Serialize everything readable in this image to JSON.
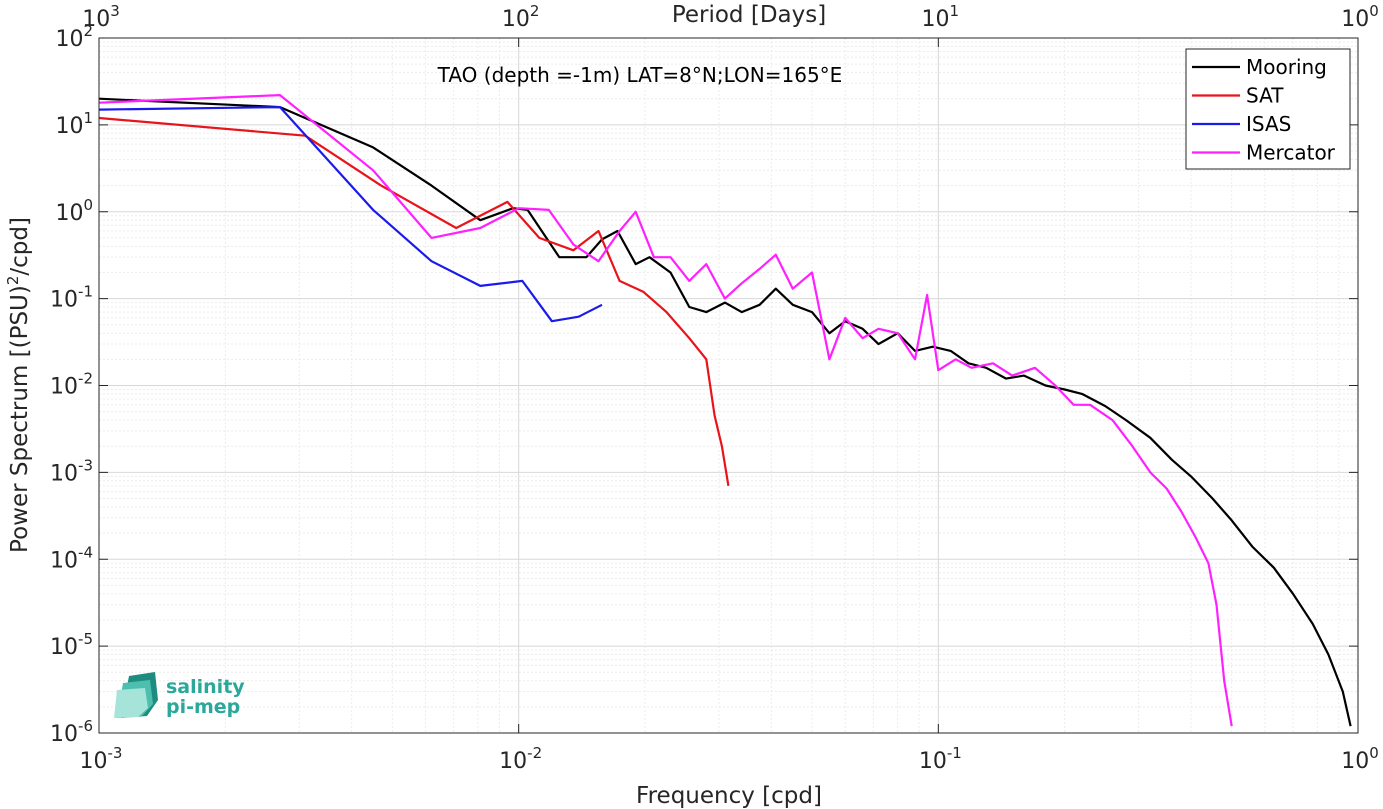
{
  "chart_data": {
    "type": "line",
    "title": "TAO (depth =-1m) LAT=8°N;LON=165°E",
    "xlabel": "Frequency [cpd]",
    "ylabel_main": "Power Spectrum [(PSU)",
    "ylabel_sup": "2",
    "ylabel_tail": "/cpd]",
    "top_xlabel": "Period [Days]",
    "x_scale": "log",
    "y_scale": "log",
    "xlim": [
      0.001,
      1
    ],
    "ylim": [
      1e-06,
      100
    ],
    "grid": true,
    "minor_grid": true,
    "legend_position": "top-right",
    "x_ticks": [
      {
        "value": 0.001,
        "base": "10",
        "exp": "-3"
      },
      {
        "value": 0.01,
        "base": "10",
        "exp": "-2"
      },
      {
        "value": 0.1,
        "base": "10",
        "exp": "-1"
      },
      {
        "value": 1,
        "base": "10",
        "exp": "0"
      }
    ],
    "top_ticks": [
      {
        "value": 0.001,
        "base": "10",
        "exp": "3"
      },
      {
        "value": 0.01,
        "base": "10",
        "exp": "2"
      },
      {
        "value": 0.1,
        "base": "10",
        "exp": "1"
      },
      {
        "value": 1,
        "base": "10",
        "exp": "0"
      }
    ],
    "y_ticks": [
      {
        "value": 100,
        "base": "10",
        "exp": "2"
      },
      {
        "value": 10,
        "base": "10",
        "exp": "1"
      },
      {
        "value": 1,
        "base": "10",
        "exp": "0"
      },
      {
        "value": 0.1,
        "base": "10",
        "exp": "-1"
      },
      {
        "value": 0.01,
        "base": "10",
        "exp": "-2"
      },
      {
        "value": 0.001,
        "base": "10",
        "exp": "-3"
      },
      {
        "value": 0.0001,
        "base": "10",
        "exp": "-4"
      },
      {
        "value": 1e-05,
        "base": "10",
        "exp": "-5"
      },
      {
        "value": 1e-06,
        "base": "10",
        "exp": "-6"
      }
    ],
    "series": [
      {
        "name": "Mooring",
        "color": "#000000",
        "x": [
          0.001,
          0.0027,
          0.0045,
          0.0062,
          0.0081,
          0.0097,
          0.0105,
          0.0125,
          0.0145,
          0.0158,
          0.0172,
          0.019,
          0.0205,
          0.023,
          0.0255,
          0.028,
          0.031,
          0.034,
          0.0375,
          0.041,
          0.045,
          0.05,
          0.055,
          0.06,
          0.066,
          0.072,
          0.08,
          0.088,
          0.097,
          0.107,
          0.118,
          0.13,
          0.145,
          0.16,
          0.18,
          0.2,
          0.22,
          0.25,
          0.28,
          0.32,
          0.36,
          0.4,
          0.45,
          0.5,
          0.56,
          0.63,
          0.7,
          0.78,
          0.85,
          0.92,
          0.96
        ],
        "y": [
          20,
          16,
          5.5,
          2,
          0.8,
          1.1,
          1.05,
          0.3,
          0.3,
          0.48,
          0.6,
          0.25,
          0.3,
          0.2,
          0.08,
          0.07,
          0.09,
          0.07,
          0.085,
          0.13,
          0.085,
          0.07,
          0.04,
          0.055,
          0.045,
          0.03,
          0.04,
          0.025,
          0.028,
          0.025,
          0.018,
          0.016,
          0.012,
          0.013,
          0.01,
          0.009,
          0.008,
          0.0058,
          0.004,
          0.0025,
          0.0014,
          0.0009,
          0.0005,
          0.00028,
          0.00014,
          8e-05,
          4e-05,
          1.8e-05,
          8e-06,
          3e-06,
          1.2e-06
        ]
      },
      {
        "name": "SAT",
        "color": "#e8141b",
        "x": [
          0.001,
          0.0031,
          0.0047,
          0.0071,
          0.0094,
          0.0112,
          0.0135,
          0.0155,
          0.0174,
          0.0198,
          0.0225,
          0.0255,
          0.028,
          0.0293,
          0.0305,
          0.0316
        ],
        "y": [
          12,
          7.5,
          2,
          0.65,
          1.3,
          0.5,
          0.36,
          0.6,
          0.16,
          0.12,
          0.07,
          0.035,
          0.02,
          0.0045,
          0.002,
          0.0007
        ]
      },
      {
        "name": "ISAS",
        "color": "#1a1aeb",
        "x": [
          0.001,
          0.0027,
          0.0045,
          0.0062,
          0.0081,
          0.0102,
          0.012,
          0.0139,
          0.0158
        ],
        "y": [
          15,
          16,
          1.05,
          0.27,
          0.14,
          0.16,
          0.055,
          0.062,
          0.085
        ]
      },
      {
        "name": "Mercator",
        "color": "#ff20ff",
        "x": [
          0.001,
          0.0027,
          0.0045,
          0.0062,
          0.0081,
          0.01,
          0.0118,
          0.0135,
          0.0155,
          0.0174,
          0.019,
          0.021,
          0.023,
          0.0255,
          0.028,
          0.031,
          0.034,
          0.0375,
          0.041,
          0.045,
          0.05,
          0.055,
          0.06,
          0.066,
          0.072,
          0.08,
          0.088,
          0.094,
          0.1,
          0.11,
          0.12,
          0.135,
          0.15,
          0.17,
          0.19,
          0.21,
          0.23,
          0.26,
          0.29,
          0.32,
          0.35,
          0.38,
          0.41,
          0.44,
          0.46,
          0.48,
          0.5
        ],
        "y": [
          18,
          22,
          3,
          0.5,
          0.65,
          1.1,
          1.05,
          0.42,
          0.27,
          0.6,
          1.0,
          0.3,
          0.3,
          0.16,
          0.25,
          0.1,
          0.15,
          0.22,
          0.32,
          0.13,
          0.2,
          0.02,
          0.06,
          0.035,
          0.045,
          0.04,
          0.02,
          0.11,
          0.015,
          0.02,
          0.016,
          0.018,
          0.013,
          0.016,
          0.01,
          0.006,
          0.006,
          0.004,
          0.002,
          0.001,
          0.00065,
          0.00035,
          0.00018,
          9e-05,
          3e-05,
          4e-06,
          1.2e-06
        ]
      }
    ]
  },
  "logo": {
    "line1": "salinity",
    "line2": "pi-mep"
  }
}
